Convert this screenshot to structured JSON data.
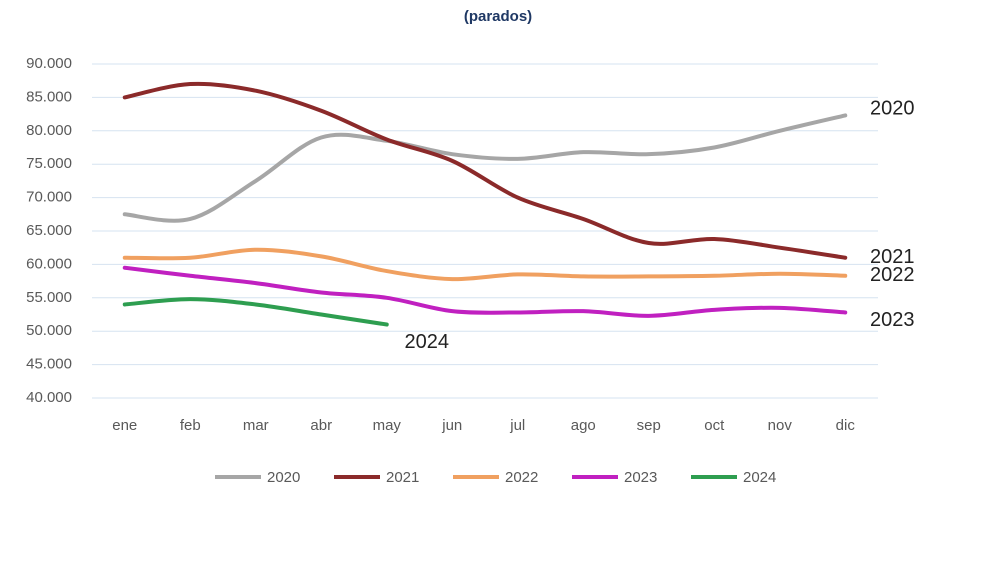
{
  "chart_data": {
    "type": "line",
    "subtitle": "(parados)",
    "categories": [
      "ene",
      "feb",
      "mar",
      "abr",
      "may",
      "jun",
      "jul",
      "ago",
      "sep",
      "oct",
      "nov",
      "dic"
    ],
    "ylim": [
      40000,
      90000
    ],
    "yticks": [
      {
        "value": 40000,
        "label": "40.000"
      },
      {
        "value": 45000,
        "label": "45.000"
      },
      {
        "value": 50000,
        "label": "50.000"
      },
      {
        "value": 55000,
        "label": "55.000"
      },
      {
        "value": 60000,
        "label": "60.000"
      },
      {
        "value": 65000,
        "label": "65.000"
      },
      {
        "value": 70000,
        "label": "70.000"
      },
      {
        "value": 75000,
        "label": "75.000"
      },
      {
        "value": 80000,
        "label": "80.000"
      },
      {
        "value": 85000,
        "label": "85.000"
      },
      {
        "value": 90000,
        "label": "90.000"
      }
    ],
    "grid": true,
    "legend": "bottom",
    "series": [
      {
        "name": "2020",
        "color": "#a6a6a6",
        "values": [
          67500,
          66800,
          72500,
          79000,
          78500,
          76500,
          75800,
          76800,
          76500,
          77500,
          80000,
          82300
        ]
      },
      {
        "name": "2021",
        "color": "#8b2a2a",
        "values": [
          85000,
          87000,
          86000,
          83000,
          78700,
          75500,
          70000,
          66800,
          63200,
          63800,
          62500,
          61000
        ]
      },
      {
        "name": "2022",
        "color": "#f0a060",
        "values": [
          61000,
          61000,
          62200,
          61200,
          59000,
          57800,
          58500,
          58200,
          58200,
          58300,
          58600,
          58300
        ]
      },
      {
        "name": "2023",
        "color": "#c020c0",
        "values": [
          59500,
          58300,
          57200,
          55800,
          55000,
          53000,
          52800,
          53000,
          52300,
          53200,
          53500,
          52800
        ]
      },
      {
        "name": "2024",
        "color": "#2e9e50",
        "values": [
          54000,
          54800,
          54000,
          52500,
          51000,
          null,
          null,
          null,
          null,
          null,
          null,
          null
        ]
      }
    ]
  }
}
